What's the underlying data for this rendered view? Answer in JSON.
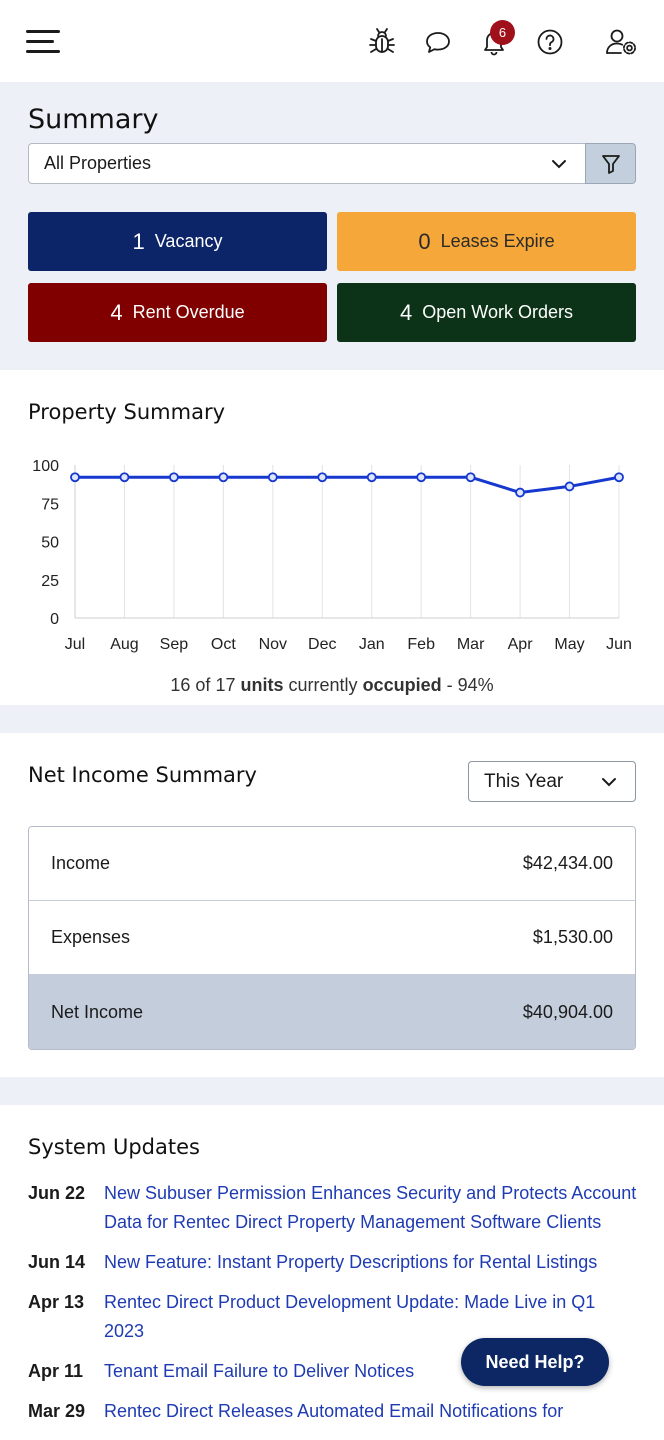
{
  "header": {
    "notification_count": "6",
    "icons": [
      "menu-icon",
      "bug-icon",
      "chat-icon",
      "bell-icon",
      "help-icon",
      "user-settings-icon"
    ]
  },
  "summary": {
    "title": "Summary",
    "property_select": "All Properties",
    "tiles": [
      {
        "count": "1",
        "label": "Vacancy",
        "color": "#0c2468"
      },
      {
        "count": "0",
        "label": "Leases Expire",
        "color": "#f6a73a"
      },
      {
        "count": "4",
        "label": "Rent Overdue",
        "color": "#800000"
      },
      {
        "count": "4",
        "label": "Open Work Orders",
        "color": "#0c3317"
      }
    ]
  },
  "property_summary": {
    "title": "Property Summary",
    "occupancy": {
      "occupied": "16",
      "total": "17",
      "of_text": "of",
      "units_word": "units",
      "currently_word": "currently",
      "occupied_word": "occupied",
      "percent": "94%"
    }
  },
  "chart_data": {
    "type": "line",
    "categories": [
      "Jul",
      "Aug",
      "Sep",
      "Oct",
      "Nov",
      "Dec",
      "Jan",
      "Feb",
      "Mar",
      "Apr",
      "May",
      "Jun"
    ],
    "series": [
      {
        "values": [
          92,
          92,
          92,
          92,
          92,
          92,
          92,
          92,
          92,
          82,
          86,
          92
        ],
        "color": "#1638cf"
      }
    ],
    "yticks": [
      0,
      25,
      50,
      75,
      100
    ],
    "ylim": [
      0,
      100
    ],
    "grid": "vertical"
  },
  "net_income": {
    "title": "Net Income Summary",
    "period_select": "This Year",
    "rows": [
      {
        "label": "Income",
        "value": "$42,434.00"
      },
      {
        "label": "Expenses",
        "value": "$1,530.00"
      },
      {
        "label": "Net Income",
        "value": "$40,904.00"
      }
    ]
  },
  "system_updates": {
    "title": "System Updates",
    "items": [
      {
        "date": "Jun 22",
        "text": "New Subuser Permission Enhances Security and Protects Account Data for Rentec Direct Property Management Software Clients"
      },
      {
        "date": "Jun 14",
        "text": "New Feature: Instant Property Descriptions for Rental Listings"
      },
      {
        "date": "Apr 13",
        "text": "Rentec Direct Product Development Update: Made Live in Q1 2023"
      },
      {
        "date": "Apr 11",
        "text": "Tenant Email Failure to Deliver Notices"
      },
      {
        "date": "Mar 29",
        "text": "Rentec Direct Releases Automated Email Notifications for"
      }
    ]
  },
  "help_button": "Need Help?"
}
